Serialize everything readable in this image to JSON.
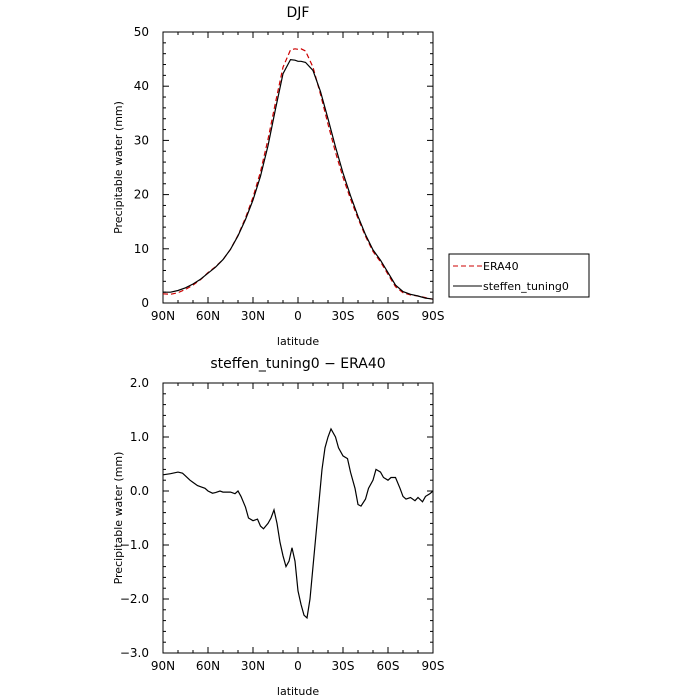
{
  "chart_data": [
    {
      "type": "line",
      "title": "DJF",
      "xlabel": "latitude",
      "ylabel": "Precipitable water (mm)",
      "xlim": [
        90,
        -90
      ],
      "ylim": [
        0,
        50
      ],
      "x_ticks": [
        90,
        60,
        30,
        0,
        -30,
        -60,
        -90
      ],
      "x_tick_labels": [
        "90N",
        "60N",
        "30N",
        "0",
        "30S",
        "60S",
        "90S"
      ],
      "y_ticks": [
        0,
        10,
        20,
        30,
        40,
        50
      ],
      "y_tick_labels": [
        "0",
        "10",
        "20",
        "30",
        "40",
        "50"
      ],
      "grid": false,
      "legend": {
        "placement": "right",
        "entries": [
          {
            "label": "ERA40",
            "color": "#cc0000",
            "dash": "dashed"
          },
          {
            "label": "steffen_tuning0",
            "color": "#000000",
            "dash": "solid"
          }
        ]
      },
      "x": [
        90,
        85,
        80,
        75,
        70,
        65,
        60,
        55,
        50,
        45,
        40,
        35,
        30,
        25,
        20,
        15,
        10,
        5,
        2,
        0,
        -2,
        -5,
        -10,
        -15,
        -20,
        -25,
        -30,
        -35,
        -40,
        -45,
        -50,
        -55,
        -60,
        -65,
        -70,
        -75,
        -80,
        -85,
        -88,
        -90
      ],
      "series": [
        {
          "name": "ERA40",
          "color": "#cc0000",
          "values": [
            1.7,
            1.6,
            1.9,
            2.5,
            3.3,
            4.3,
            5.6,
            6.7,
            8.0,
            9.9,
            12.5,
            15.7,
            19.5,
            24.2,
            30.2,
            37.0,
            43.5,
            46.7,
            46.9,
            46.8,
            46.9,
            46.5,
            43.5,
            38.5,
            33.0,
            27.8,
            23.2,
            19.2,
            15.6,
            12.3,
            9.5,
            7.6,
            5.3,
            3.0,
            1.9,
            1.5,
            1.3,
            1.0,
            0.8,
            0.7
          ]
        },
        {
          "name": "steffen_tuning0",
          "color": "#000000",
          "values": [
            2.0,
            2.0,
            2.3,
            2.8,
            3.5,
            4.4,
            5.5,
            6.6,
            8.0,
            9.9,
            12.4,
            15.4,
            19.0,
            23.4,
            29.0,
            35.8,
            42.3,
            44.9,
            44.8,
            44.6,
            44.6,
            44.4,
            42.9,
            39.0,
            34.0,
            28.8,
            24.0,
            19.8,
            16.0,
            12.6,
            9.8,
            7.9,
            5.6,
            3.3,
            2.1,
            1.6,
            1.3,
            0.9,
            0.8,
            0.7
          ]
        }
      ]
    },
    {
      "type": "line",
      "title": "steffen_tuning0 − ERA40",
      "xlabel": "latitude",
      "ylabel": "Precipitable water (mm)",
      "xlim": [
        90,
        -90
      ],
      "ylim": [
        -3.0,
        2.0
      ],
      "x_ticks": [
        90,
        60,
        30,
        0,
        -30,
        -60,
        -90
      ],
      "x_tick_labels": [
        "90N",
        "60N",
        "30N",
        "0",
        "30S",
        "60S",
        "90S"
      ],
      "y_ticks": [
        2.0,
        1.0,
        0.0,
        -1.0,
        -2.0,
        -3.0
      ],
      "y_tick_labels": [
        "2.0",
        "1.0",
        "0.0",
        "−1.0",
        "−2.0",
        "−3.0"
      ],
      "grid": false,
      "x": [
        90,
        85,
        80,
        77,
        75,
        72,
        70,
        67,
        65,
        62,
        60,
        57,
        55,
        52,
        50,
        48,
        45,
        42,
        40,
        38,
        35,
        33,
        30,
        27,
        25,
        23,
        20,
        18,
        16,
        14,
        12,
        10,
        8,
        6,
        4,
        2,
        0,
        -2,
        -4,
        -6,
        -8,
        -10,
        -12,
        -14,
        -16,
        -18,
        -20,
        -22,
        -25,
        -27,
        -30,
        -33,
        -35,
        -38,
        -40,
        -42,
        -45,
        -47,
        -50,
        -52,
        -55,
        -57,
        -60,
        -62,
        -65,
        -68,
        -70,
        -72,
        -75,
        -78,
        -80,
        -83,
        -85,
        -88,
        -90
      ],
      "series": [
        {
          "name": "steffen_tuning0",
          "color": "#000000",
          "values": [
            0.3,
            0.32,
            0.35,
            0.33,
            0.28,
            0.2,
            0.16,
            0.1,
            0.08,
            0.05,
            0.0,
            -0.04,
            -0.03,
            0.0,
            -0.02,
            -0.02,
            -0.02,
            -0.05,
            0.0,
            -0.1,
            -0.3,
            -0.5,
            -0.55,
            -0.52,
            -0.65,
            -0.7,
            -0.6,
            -0.5,
            -0.35,
            -0.6,
            -0.95,
            -1.2,
            -1.4,
            -1.3,
            -1.05,
            -1.3,
            -1.85,
            -2.1,
            -2.3,
            -2.35,
            -2.0,
            -1.4,
            -0.8,
            -0.2,
            0.4,
            0.8,
            1.0,
            1.15,
            1.0,
            0.8,
            0.65,
            0.6,
            0.35,
            0.05,
            -0.25,
            -0.28,
            -0.15,
            0.05,
            0.2,
            0.4,
            0.35,
            0.25,
            0.2,
            0.25,
            0.25,
            0.05,
            -0.1,
            -0.15,
            -0.12,
            -0.18,
            -0.12,
            -0.2,
            -0.1,
            -0.05,
            0.0
          ]
        }
      ]
    }
  ]
}
